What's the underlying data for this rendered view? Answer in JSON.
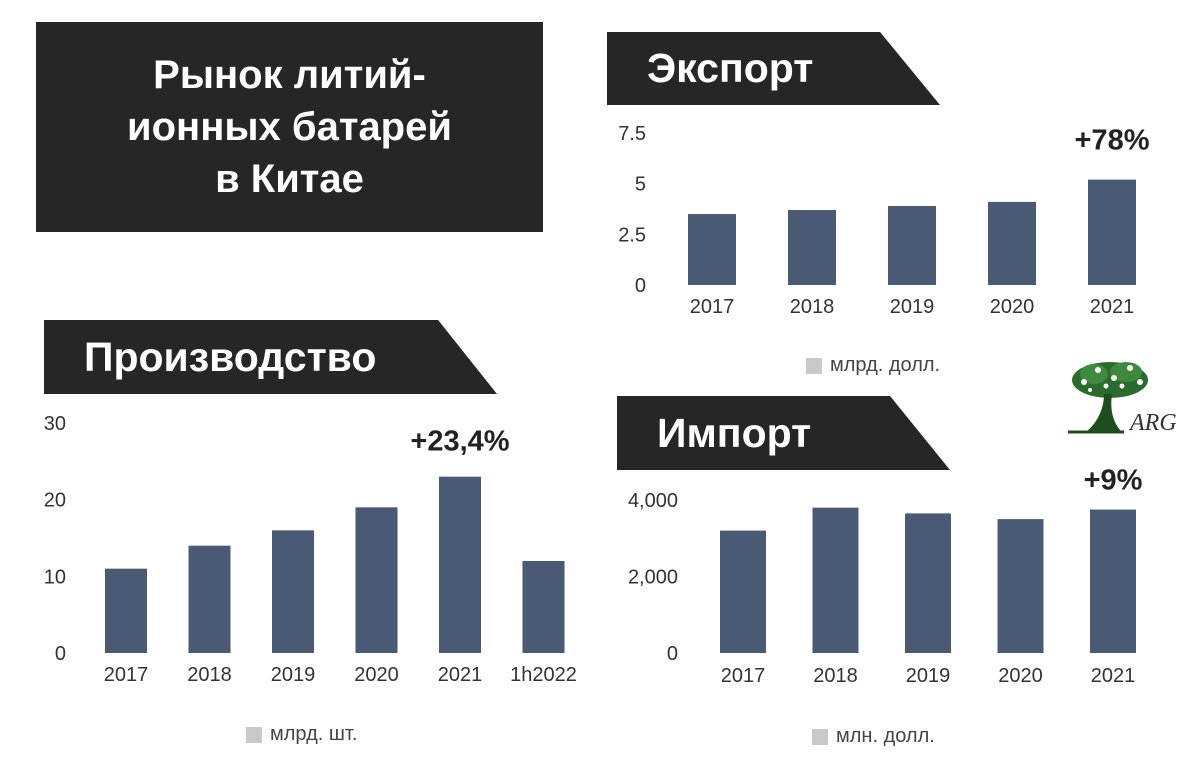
{
  "title": "Рынок литий-\nионных батарей\nв Китае",
  "logo_text": "ARG",
  "chart_data": [
    {
      "id": "export",
      "type": "bar",
      "title": "Экспорт",
      "categories": [
        "2017",
        "2018",
        "2019",
        "2020",
        "2021"
      ],
      "values": [
        3.5,
        3.7,
        3.9,
        4.1,
        5.2
      ],
      "ylim": [
        0,
        7.5
      ],
      "yticks": [
        "0",
        "2.5",
        "5",
        "7.5"
      ],
      "ytick_values": [
        0,
        2.5,
        5,
        7.5
      ],
      "annotation": "+78%",
      "legend": "млрд. долл.",
      "bar_color": "#4a5a74"
    },
    {
      "id": "production",
      "type": "bar",
      "title": "Производство",
      "categories": [
        "2017",
        "2018",
        "2019",
        "2020",
        "2021",
        "1h2022"
      ],
      "values": [
        11,
        14,
        16,
        19,
        23,
        12
      ],
      "ylim": [
        0,
        30
      ],
      "yticks": [
        "0",
        "10",
        "20",
        "30"
      ],
      "ytick_values": [
        0,
        10,
        20,
        30
      ],
      "annotation": "+23,4%",
      "legend": "млрд. шт.",
      "bar_color": "#4a5a74"
    },
    {
      "id": "import",
      "type": "bar",
      "title": "Импорт",
      "categories": [
        "2017",
        "2018",
        "2019",
        "2020",
        "2021"
      ],
      "values": [
        3200,
        3800,
        3650,
        3500,
        3750
      ],
      "ylim": [
        0,
        4000
      ],
      "yticks": [
        "0",
        "2,000",
        "4,000"
      ],
      "ytick_values": [
        0,
        2000,
        4000
      ],
      "annotation": "+9%",
      "legend": "млн. долл.",
      "bar_color": "#4a5a74"
    }
  ]
}
